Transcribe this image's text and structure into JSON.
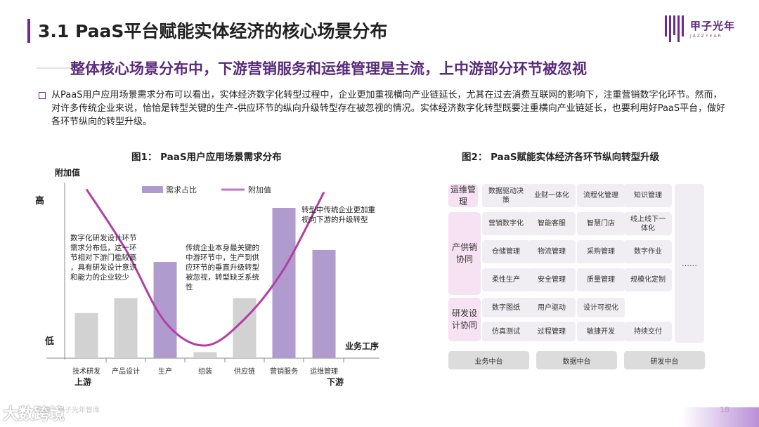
{
  "header": {
    "title": "3.1 PaaS平台赋能实体经济的核心场景分布",
    "logo_text": "甲子光年",
    "logo_sub": "JAZZYEAR",
    "subtitle": "整体核心场景分布中，下游营销服务和运维管理是主流，上中游部分环节被忽视"
  },
  "intro": "从PaaS用户应用场景需求分布可以看出，实体经济数字化转型过程中，企业更加重视横向产业链延长，尤其在过去消费互联网的影响下，注重营销数字化环节。然而，对许多传统企业来说，恰恰是转型关键的生产-供应环节的纵向升级转型存在被忽视的情况。实体经济数字化转型既要注重横向产业链延长，也要利用好PaaS平台，做好各环节纵向的转型升级。",
  "figure1": {
    "title": "图1： PaaS用户应用场景需求分布",
    "y_title": "附加值",
    "y_high": "高",
    "y_low": "低",
    "x_title": "业务工序",
    "x_left": "上游",
    "x_right": "下游",
    "annotations": [
      "数字化研发设计环节需求分布低，这一环节相对下游门槛较高，具有研发设计意识和能力的企业较少",
      "传统企业本身最关键的中游环节中，生产到供应环节的垂直升级转型被忽视，转型缺乏系统性",
      "转型中传统企业更加重视向下游的升级转型"
    ]
  },
  "chart_data": {
    "type": "bar",
    "categories": [
      "技术研发",
      "产品设计",
      "生产",
      "组装",
      "供应链",
      "营销服务",
      "运维管理"
    ],
    "series": [
      {
        "name": "需求占比",
        "values": [
          0.3,
          0.4,
          0.64,
          0.04,
          0.4,
          1.0,
          0.72
        ],
        "color": "#b09bcf"
      },
      {
        "name": "附加值",
        "type": "line",
        "values": [
          1.06,
          0.65,
          0.16,
          0.0,
          0.18,
          0.52,
          1.04
        ],
        "color": "#b23fa5"
      }
    ],
    "highlight_categories": [
      "生产",
      "营销服务",
      "运维管理"
    ],
    "bar_colors": {
      "normal": "#d2d2d2",
      "highlight": "#b09bcf"
    },
    "legend": {
      "position": "top"
    },
    "xlabel": "业务工序",
    "ylabel": "附加值",
    "grid": false
  },
  "figure2": {
    "title": "图2： PaaS赋能实体经济各环节纵向转型升级",
    "rows": [
      {
        "side": "运维管理",
        "cells": [
          "数据驱动决策",
          "业财一体化",
          "流程化管理",
          "知识管理"
        ]
      },
      {
        "side": "产供销协同",
        "cells": [
          "营销数字化",
          "智能客服",
          "智慧门店",
          "线上线下一体化",
          "仓储管理",
          "物流管理",
          "采购管理",
          "数字作业",
          "柔性生产",
          "安全管理",
          "质量管理",
          "规模化定制"
        ]
      },
      {
        "side": "研发设计协同",
        "cells": [
          "数字图纸",
          "用户驱动",
          "设计可视化",
          "仿真测试",
          "过程管理",
          "敏捷开发",
          "持续交付"
        ]
      }
    ],
    "extra": "……",
    "bottom": [
      "业务中台",
      "数据中台",
      "研发中台"
    ]
  },
  "footer": {
    "logo": "大数跨境",
    "source": "来源：甲子光年智库",
    "page": "18"
  }
}
